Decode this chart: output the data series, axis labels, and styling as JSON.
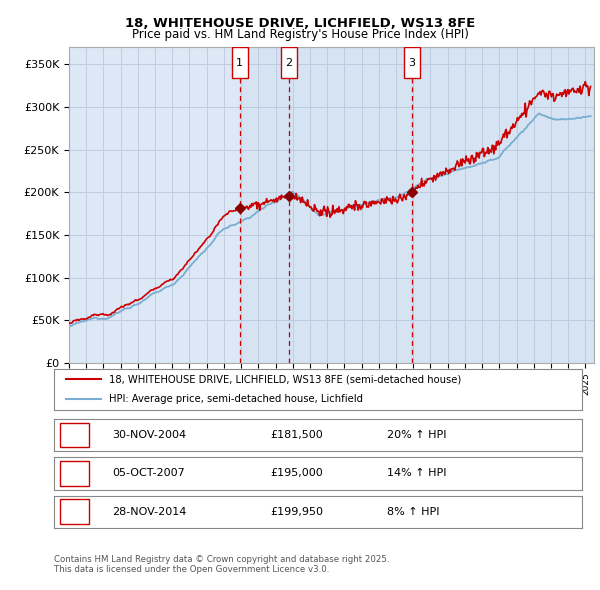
{
  "title1": "18, WHITEHOUSE DRIVE, LICHFIELD, WS13 8FE",
  "title2": "Price paid vs. HM Land Registry's House Price Index (HPI)",
  "ylabel_ticks": [
    "£0",
    "£50K",
    "£100K",
    "£150K",
    "£200K",
    "£250K",
    "£300K",
    "£350K"
  ],
  "ytick_vals": [
    0,
    50000,
    100000,
    150000,
    200000,
    250000,
    300000,
    350000
  ],
  "ylim": [
    0,
    370000
  ],
  "xlim_start": 1995.0,
  "xlim_end": 2025.5,
  "sale_dates": [
    2004.92,
    2007.77,
    2014.92
  ],
  "sale_prices": [
    181500,
    195000,
    199950
  ],
  "sale_labels": [
    "1",
    "2",
    "3"
  ],
  "legend_line1": "18, WHITEHOUSE DRIVE, LICHFIELD, WS13 8FE (semi-detached house)",
  "legend_line2": "HPI: Average price, semi-detached house, Lichfield",
  "table_rows": [
    {
      "num": "1",
      "date": "30-NOV-2004",
      "price": "£181,500",
      "hpi": "20% ↑ HPI"
    },
    {
      "num": "2",
      "date": "05-OCT-2007",
      "price": "£195,000",
      "hpi": "14% ↑ HPI"
    },
    {
      "num": "3",
      "date": "28-NOV-2014",
      "price": "£199,950",
      "hpi": "8% ↑ HPI"
    }
  ],
  "footer": "Contains HM Land Registry data © Crown copyright and database right 2025.\nThis data is licensed under the Open Government Licence v3.0.",
  "red_color": "#cc0000",
  "blue_color": "#7aadcf",
  "bg_color": "#dce8f5",
  "grid_color": "#c0cce0",
  "box_color": "#ffffff",
  "highlight_color": "#e8f0fa"
}
